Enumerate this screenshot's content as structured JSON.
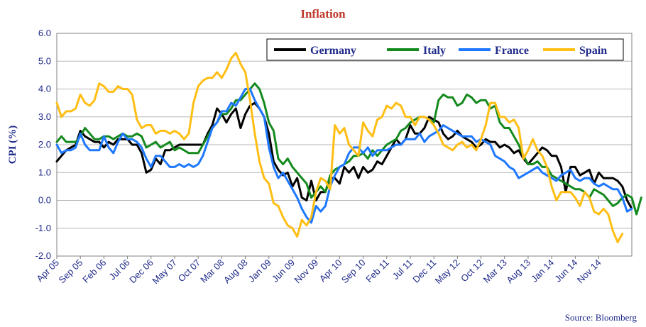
{
  "chart_data": {
    "type": "line",
    "title": "Inflation",
    "ylabel": "CPI (%)",
    "xlabel": "",
    "ylim": [
      -2.0,
      6.0
    ],
    "yticks": [
      "6.0",
      "5.0",
      "4.0",
      "3.0",
      "2.0",
      "1.0",
      "0.0",
      "-1.0",
      "-2.0"
    ],
    "xticks": [
      "Apr 05",
      "Sep 05",
      "Feb 06",
      "Jul 06",
      "Dec 06",
      "May 07",
      "Oct 07",
      "Mar 08",
      "Aug 08",
      "Jan 09",
      "Jun 09",
      "Nov 09",
      "Apr 10",
      "Sep 10",
      "Feb 11",
      "Jul 11",
      "Dec 11",
      "May 12",
      "Oct 12",
      "Mar 13",
      "Aug 13",
      "Jan 14",
      "Jun 14",
      "Nov 14"
    ],
    "x_start": "Apr 05",
    "grid": true,
    "legend_position": "top-right",
    "source": "Source: Bloomberg",
    "colors": {
      "Germany": "#000000",
      "Italy": "#148a1e",
      "France": "#1e78ff",
      "Spain": "#ffbe14",
      "axis_text": "#1f2a8a",
      "title": "#c0392b"
    },
    "series": [
      {
        "name": "Germany",
        "values": [
          1.4,
          1.6,
          1.8,
          1.9,
          2.0,
          2.5,
          2.3,
          2.2,
          2.1,
          2.1,
          1.9,
          2.1,
          2.0,
          2.2,
          2.2,
          2.2,
          2.0,
          2.0,
          1.7,
          1.0,
          1.1,
          1.5,
          1.3,
          1.8,
          1.8,
          1.9,
          2.0,
          2.0,
          2.0,
          2.0,
          2.0,
          2.0,
          2.4,
          2.7,
          3.3,
          3.1,
          2.8,
          3.1,
          3.3,
          2.6,
          3.1,
          3.4,
          3.5,
          3.3,
          3.0,
          2.4,
          1.4,
          1.1,
          0.9,
          1.0,
          0.5,
          0.8,
          0.1,
          0.0,
          0.7,
          0.0,
          0.3,
          0.3,
          0.8,
          0.8,
          0.6,
          1.2,
          1.0,
          1.2,
          0.8,
          1.2,
          1.0,
          1.1,
          1.4,
          1.3,
          1.6,
          1.9,
          2.2,
          2.0,
          2.2,
          2.7,
          2.4,
          2.4,
          2.6,
          3.0,
          2.9,
          2.8,
          2.4,
          2.2,
          2.3,
          2.5,
          2.3,
          2.2,
          2.1,
          1.9,
          2.0,
          2.2,
          2.1,
          2.1,
          1.9,
          2.0,
          1.9,
          1.7,
          1.8,
          1.5,
          1.3,
          1.5,
          1.7,
          1.9,
          1.8,
          1.6,
          1.6,
          1.2,
          0.3,
          1.2,
          1.2,
          0.9,
          1.0,
          1.1,
          0.6,
          1.0,
          0.8,
          0.8,
          0.8,
          0.7,
          0.5,
          0.0,
          -0.3
        ]
      },
      {
        "name": "Italy",
        "values": [
          2.1,
          2.3,
          2.1,
          2.1,
          2.1,
          2.3,
          2.6,
          2.4,
          2.2,
          2.2,
          2.3,
          2.3,
          2.2,
          2.3,
          2.4,
          2.3,
          2.3,
          2.4,
          2.3,
          1.9,
          2.0,
          2.1,
          1.9,
          2.0,
          2.1,
          1.8,
          1.9,
          1.8,
          1.7,
          1.7,
          1.7,
          2.0,
          2.3,
          2.6,
          2.8,
          3.1,
          3.1,
          3.3,
          3.6,
          3.6,
          3.8,
          4.0,
          4.2,
          4.0,
          3.5,
          2.8,
          2.5,
          1.5,
          1.3,
          1.5,
          1.2,
          1.0,
          0.8,
          0.6,
          0.1,
          0.3,
          0.5,
          0.3,
          0.9,
          1.1,
          1.2,
          1.3,
          1.4,
          1.6,
          1.6,
          1.7,
          1.5,
          1.8,
          1.6,
          1.8,
          2.0,
          2.1,
          2.2,
          2.5,
          2.6,
          2.8,
          2.9,
          3.0,
          3.0,
          2.9,
          2.8,
          3.6,
          3.8,
          3.7,
          3.7,
          3.4,
          3.5,
          3.8,
          3.7,
          3.5,
          3.6,
          3.6,
          3.3,
          3.4,
          2.8,
          2.6,
          2.6,
          2.3,
          2.0,
          1.6,
          1.3,
          1.3,
          1.4,
          1.2,
          1.2,
          0.9,
          0.8,
          0.7,
          0.6,
          0.5,
          0.4,
          0.4,
          0.3,
          0.1,
          0.4,
          0.3,
          0.2,
          0.0,
          -0.2,
          -0.1,
          0.1,
          0.2,
          0.1,
          -0.5,
          0.1
        ]
      },
      {
        "name": "France",
        "values": [
          2.0,
          1.7,
          1.8,
          1.8,
          1.9,
          2.4,
          2.0,
          1.8,
          1.8,
          1.8,
          2.3,
          1.9,
          1.7,
          2.1,
          2.4,
          2.2,
          2.2,
          2.1,
          1.9,
          1.5,
          1.2,
          1.6,
          1.6,
          1.4,
          1.2,
          1.2,
          1.3,
          1.2,
          1.3,
          1.2,
          1.3,
          1.6,
          2.1,
          2.6,
          2.8,
          3.2,
          3.2,
          3.5,
          3.4,
          3.7,
          4.0,
          4.0,
          3.6,
          3.3,
          3.0,
          1.9,
          1.2,
          0.8,
          1.0,
          0.7,
          0.4,
          0.1,
          -0.3,
          -0.6,
          -0.8,
          -0.2,
          -0.4,
          -0.2,
          0.5,
          0.9,
          1.2,
          1.3,
          1.7,
          1.9,
          1.9,
          1.7,
          1.9,
          1.6,
          1.8,
          1.8,
          1.8,
          1.9,
          2.0,
          2.0,
          2.2,
          2.2,
          2.2,
          2.4,
          2.1,
          2.3,
          2.4,
          2.5,
          2.7,
          2.6,
          2.5,
          2.4,
          2.3,
          2.3,
          2.3,
          2.1,
          2.2,
          2.1,
          2.0,
          1.6,
          1.5,
          1.4,
          1.2,
          1.1,
          0.8,
          0.9,
          1.0,
          1.1,
          1.2,
          1.0,
          0.9,
          0.8,
          0.7,
          0.9,
          1.0,
          1.1,
          0.8,
          0.7,
          0.8,
          0.8,
          0.6,
          0.5,
          0.6,
          0.5,
          0.4,
          0.4,
          0.1,
          -0.4,
          -0.3
        ]
      },
      {
        "name": "Spain",
        "values": [
          3.5,
          3.0,
          3.2,
          3.2,
          3.3,
          3.8,
          3.5,
          3.4,
          3.6,
          4.2,
          4.1,
          3.9,
          3.9,
          4.1,
          4.0,
          4.0,
          3.8,
          2.9,
          2.6,
          2.7,
          2.7,
          2.4,
          2.5,
          2.5,
          2.4,
          2.5,
          2.4,
          2.2,
          2.4,
          3.5,
          4.1,
          4.3,
          4.4,
          4.4,
          4.6,
          4.4,
          4.7,
          5.1,
          5.3,
          4.9,
          4.6,
          3.6,
          2.4,
          1.4,
          0.8,
          0.6,
          -0.1,
          -0.2,
          -0.6,
          -0.9,
          -1.0,
          -1.3,
          -0.7,
          -0.9,
          -0.6,
          0.3,
          0.8,
          0.7,
          0.4,
          2.7,
          2.4,
          2.6,
          2.0,
          1.8,
          1.6,
          2.8,
          2.5,
          2.3,
          2.9,
          3.0,
          3.4,
          3.3,
          3.5,
          3.4,
          3.0,
          3.0,
          2.7,
          3.0,
          3.0,
          2.9,
          2.7,
          2.4,
          2.0,
          1.9,
          1.8,
          2.0,
          2.1,
          1.9,
          2.0,
          1.8,
          2.2,
          2.7,
          3.5,
          3.5,
          3.0,
          3.0,
          2.8,
          2.9,
          2.6,
          1.5,
          1.8,
          2.2,
          1.8,
          1.6,
          1.2,
          0.5,
          0.0,
          0.3,
          0.3,
          0.3,
          0.1,
          -0.2,
          0.3,
          0.1,
          -0.4,
          -0.5,
          -0.3,
          -0.5,
          -1.1,
          -1.5,
          -1.2
        ]
      }
    ]
  }
}
